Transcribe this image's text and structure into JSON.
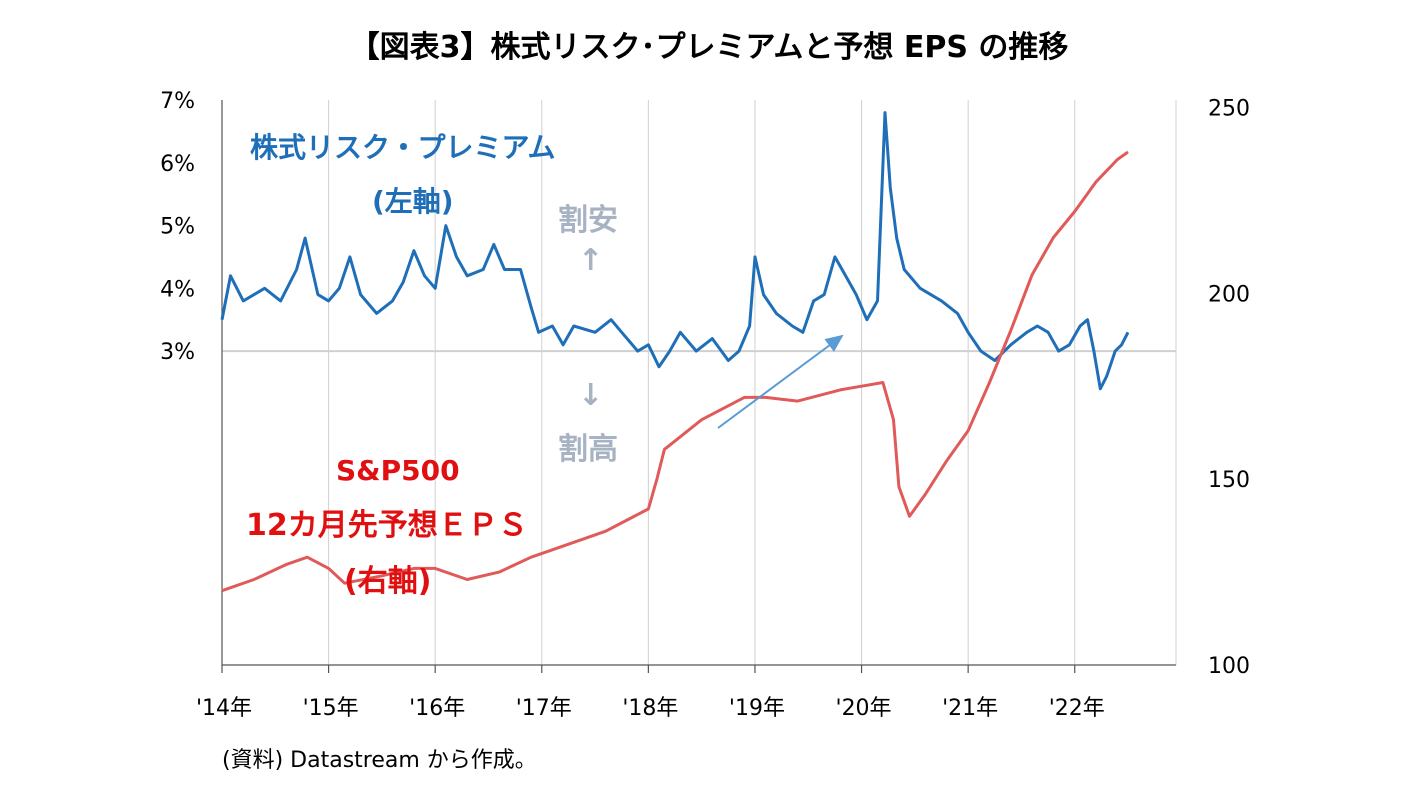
{
  "title": "【図表3】株式リスク･プレミアムと予想 EPS の推移",
  "annotations": {
    "erp_label": "株式リスク・プレミアム",
    "erp_axis_note": "(左軸)",
    "cheap_label": "割安",
    "up_arrow": "↑",
    "down_arrow": "↓",
    "expensive_label": "割高",
    "eps_label_1": "S&P500",
    "eps_label_2": "12カ月先予想ＥＰＳ",
    "eps_axis_note": "(右軸)"
  },
  "source": "(資料) Datastream から作成。",
  "colors": {
    "erp": "#1f6fb8",
    "eps": "#e05a5a",
    "eps_label": "#e01010",
    "hint": "#a7b2c2",
    "arrow": "#5b9bd5",
    "grid": "#d0d0d0"
  },
  "chart_data": {
    "type": "line",
    "title": "【図表3】株式リスク･プレミアムと予想 EPS の推移",
    "x_tick_labels": [
      "'14年",
      "'15年",
      "'16年",
      "'17年",
      "'18年",
      "'19年",
      "'20年",
      "'21年",
      "'22年"
    ],
    "x_range": [
      2014.0,
      2022.95
    ],
    "left_axis": {
      "ticks": [
        "3%",
        "4%",
        "5%",
        "6%",
        "7%"
      ],
      "tick_values": [
        3,
        4,
        5,
        6,
        7
      ],
      "range": [
        -2.0,
        7.0
      ],
      "unit": "%"
    },
    "right_axis": {
      "ticks": [
        "100",
        "150",
        "200",
        "250"
      ],
      "tick_values": [
        100,
        150,
        200,
        250
      ],
      "range": [
        100,
        252
      ]
    },
    "grid": "vertical lines at each year, horizontal line at 3%",
    "series": [
      {
        "name": "株式リスク・プレミアム",
        "axis": "left",
        "points": [
          [
            2014.0,
            3.5
          ],
          [
            2014.08,
            4.2
          ],
          [
            2014.2,
            3.8
          ],
          [
            2014.4,
            4.0
          ],
          [
            2014.55,
            3.8
          ],
          [
            2014.7,
            4.3
          ],
          [
            2014.78,
            4.8
          ],
          [
            2014.9,
            3.9
          ],
          [
            2015.0,
            3.8
          ],
          [
            2015.1,
            4.0
          ],
          [
            2015.2,
            4.5
          ],
          [
            2015.3,
            3.9
          ],
          [
            2015.45,
            3.6
          ],
          [
            2015.6,
            3.8
          ],
          [
            2015.7,
            4.1
          ],
          [
            2015.8,
            4.6
          ],
          [
            2015.9,
            4.2
          ],
          [
            2016.0,
            4.0
          ],
          [
            2016.1,
            5.0
          ],
          [
            2016.2,
            4.5
          ],
          [
            2016.3,
            4.2
          ],
          [
            2016.45,
            4.3
          ],
          [
            2016.55,
            4.7
          ],
          [
            2016.65,
            4.3
          ],
          [
            2016.8,
            4.3
          ],
          [
            2016.9,
            3.7
          ],
          [
            2016.97,
            3.3
          ],
          [
            2017.1,
            3.4
          ],
          [
            2017.2,
            3.1
          ],
          [
            2017.3,
            3.4
          ],
          [
            2017.5,
            3.3
          ],
          [
            2017.65,
            3.5
          ],
          [
            2017.75,
            3.3
          ],
          [
            2017.9,
            3.0
          ],
          [
            2018.0,
            3.1
          ],
          [
            2018.1,
            2.75
          ],
          [
            2018.2,
            3.0
          ],
          [
            2018.3,
            3.3
          ],
          [
            2018.45,
            3.0
          ],
          [
            2018.6,
            3.2
          ],
          [
            2018.75,
            2.85
          ],
          [
            2018.85,
            3.0
          ],
          [
            2018.95,
            3.4
          ],
          [
            2019.0,
            4.5
          ],
          [
            2019.08,
            3.9
          ],
          [
            2019.2,
            3.6
          ],
          [
            2019.35,
            3.4
          ],
          [
            2019.45,
            3.3
          ],
          [
            2019.55,
            3.8
          ],
          [
            2019.65,
            3.9
          ],
          [
            2019.75,
            4.5
          ],
          [
            2019.85,
            4.2
          ],
          [
            2019.95,
            3.9
          ],
          [
            2020.05,
            3.5
          ],
          [
            2020.15,
            3.8
          ],
          [
            2020.22,
            6.8
          ],
          [
            2020.27,
            5.6
          ],
          [
            2020.33,
            4.8
          ],
          [
            2020.4,
            4.3
          ],
          [
            2020.55,
            4.0
          ],
          [
            2020.75,
            3.8
          ],
          [
            2020.9,
            3.6
          ],
          [
            2021.0,
            3.3
          ],
          [
            2021.12,
            3.0
          ],
          [
            2021.25,
            2.85
          ],
          [
            2021.4,
            3.1
          ],
          [
            2021.55,
            3.3
          ],
          [
            2021.65,
            3.4
          ],
          [
            2021.75,
            3.3
          ],
          [
            2021.85,
            3.0
          ],
          [
            2021.95,
            3.1
          ],
          [
            2022.05,
            3.4
          ],
          [
            2022.12,
            3.5
          ],
          [
            2022.18,
            3.0
          ],
          [
            2022.24,
            2.4
          ],
          [
            2022.3,
            2.6
          ],
          [
            2022.38,
            3.0
          ],
          [
            2022.44,
            3.1
          ],
          [
            2022.5,
            3.3
          ]
        ]
      },
      {
        "name": "S&P500 12カ月先予想ＥＰＳ",
        "axis": "right",
        "points": [
          [
            2014.0,
            120
          ],
          [
            2014.3,
            123
          ],
          [
            2014.6,
            127
          ],
          [
            2014.8,
            129
          ],
          [
            2015.0,
            126
          ],
          [
            2015.15,
            122
          ],
          [
            2015.5,
            124
          ],
          [
            2015.8,
            126
          ],
          [
            2016.0,
            126
          ],
          [
            2016.3,
            123
          ],
          [
            2016.6,
            125
          ],
          [
            2016.9,
            129
          ],
          [
            2017.2,
            132
          ],
          [
            2017.6,
            136
          ],
          [
            2018.0,
            142
          ],
          [
            2018.08,
            150
          ],
          [
            2018.15,
            158
          ],
          [
            2018.5,
            166
          ],
          [
            2018.9,
            172
          ],
          [
            2019.1,
            172
          ],
          [
            2019.4,
            171
          ],
          [
            2019.8,
            174
          ],
          [
            2020.0,
            175
          ],
          [
            2020.2,
            176
          ],
          [
            2020.3,
            166
          ],
          [
            2020.35,
            148
          ],
          [
            2020.45,
            140
          ],
          [
            2020.6,
            146
          ],
          [
            2020.8,
            155
          ],
          [
            2021.0,
            163
          ],
          [
            2021.2,
            176
          ],
          [
            2021.4,
            190
          ],
          [
            2021.6,
            205
          ],
          [
            2021.8,
            215
          ],
          [
            2022.0,
            222
          ],
          [
            2022.2,
            230
          ],
          [
            2022.4,
            236
          ],
          [
            2022.5,
            238
          ]
        ]
      }
    ]
  }
}
